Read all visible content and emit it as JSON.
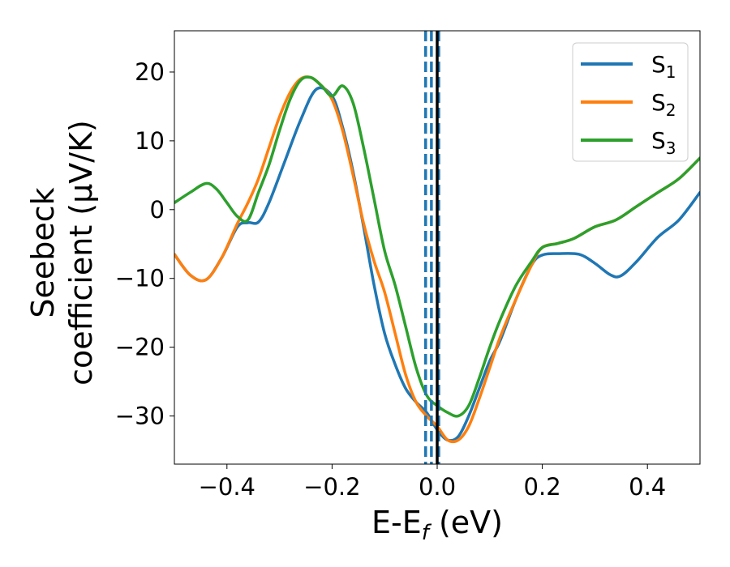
{
  "chart_data": {
    "type": "line",
    "title": "",
    "xlabel": "E-E",
    "xlabel_sub": "f",
    "xlabel_unit": " (eV)",
    "ylabel_line1": "Seebeck",
    "ylabel_line2": "coefficient  (μV/K)",
    "xlim": [
      -0.5,
      0.5
    ],
    "ylim": [
      -37,
      26
    ],
    "xticks": [
      -0.4,
      -0.2,
      0.0,
      0.2,
      0.4
    ],
    "xtick_labels": [
      "−0.4",
      "−0.2",
      "0.0",
      "0.2",
      "0.4"
    ],
    "yticks": [
      -30,
      -20,
      -10,
      0,
      10,
      20
    ],
    "ytick_labels": [
      "−30",
      "−20",
      "−10",
      "0",
      "10",
      "20"
    ],
    "legend_position": "top-right",
    "series": [
      {
        "name": "S",
        "sub": "1",
        "color": "#1f77b4",
        "x": [
          -0.5,
          -0.47,
          -0.44,
          -0.41,
          -0.38,
          -0.36,
          -0.34,
          -0.32,
          -0.29,
          -0.26,
          -0.23,
          -0.2,
          -0.18,
          -0.16,
          -0.14,
          -0.12,
          -0.1,
          -0.08,
          -0.06,
          -0.04,
          -0.02,
          0.0,
          0.02,
          0.04,
          0.06,
          0.08,
          0.1,
          0.12,
          0.15,
          0.18,
          0.2,
          0.23,
          0.27,
          0.3,
          0.33,
          0.35,
          0.38,
          0.42,
          0.46,
          0.5
        ],
        "y": [
          -6.5,
          -9.5,
          -10.2,
          -7.0,
          -2.5,
          -1.9,
          -1.8,
          1.0,
          7.0,
          13.0,
          17.5,
          16.5,
          12.0,
          5.5,
          -2.5,
          -11.0,
          -18.0,
          -22.5,
          -26.0,
          -28.0,
          -29.5,
          -32.0,
          -33.5,
          -33.0,
          -30.0,
          -26.0,
          -22.0,
          -19.0,
          -13.0,
          -8.0,
          -6.6,
          -6.4,
          -6.5,
          -7.8,
          -9.5,
          -9.6,
          -7.5,
          -4.0,
          -1.5,
          2.5
        ]
      },
      {
        "name": "S",
        "sub": "2",
        "color": "#ff7f0e",
        "x": [
          -0.5,
          -0.47,
          -0.44,
          -0.41,
          -0.38,
          -0.36,
          -0.34,
          -0.32,
          -0.3,
          -0.28,
          -0.26,
          -0.24,
          -0.22,
          -0.2,
          -0.18,
          -0.16,
          -0.14,
          -0.12,
          -0.1,
          -0.08,
          -0.06,
          -0.04,
          -0.02,
          0.0,
          0.02,
          0.04,
          0.06,
          0.08,
          0.1,
          0.12,
          0.15,
          0.18,
          0.2,
          0.23,
          0.26,
          0.3,
          0.34,
          0.38,
          0.42,
          0.46,
          0.5
        ],
        "y": [
          -6.5,
          -9.5,
          -10.2,
          -7.0,
          -2.0,
          1.0,
          4.5,
          9.0,
          13.5,
          17.0,
          19.0,
          19.2,
          18.0,
          16.0,
          11.5,
          5.0,
          -2.0,
          -7.5,
          -12.0,
          -18.0,
          -24.0,
          -28.0,
          -30.0,
          -31.5,
          -33.5,
          -33.5,
          -31.5,
          -27.5,
          -23.0,
          -18.5,
          -13.0,
          -8.0,
          -5.5,
          -4.9,
          -4.2,
          -2.5,
          -1.5,
          0.5,
          2.5,
          4.5,
          7.5
        ]
      },
      {
        "name": "S",
        "sub": "3",
        "color": "#2ca02c",
        "x": [
          -0.5,
          -0.47,
          -0.44,
          -0.42,
          -0.4,
          -0.38,
          -0.36,
          -0.34,
          -0.32,
          -0.3,
          -0.28,
          -0.26,
          -0.24,
          -0.22,
          -0.2,
          -0.18,
          -0.16,
          -0.14,
          -0.12,
          -0.1,
          -0.08,
          -0.06,
          -0.04,
          -0.02,
          0.0,
          0.02,
          0.04,
          0.06,
          0.08,
          0.1,
          0.12,
          0.15,
          0.18,
          0.2,
          0.23,
          0.26,
          0.3,
          0.34,
          0.38,
          0.42,
          0.46,
          0.5
        ],
        "y": [
          1.0,
          2.5,
          3.8,
          3.0,
          1.0,
          -1.0,
          -1.5,
          2.5,
          6.5,
          11.5,
          16.0,
          18.8,
          19.2,
          18.0,
          16.5,
          18.0,
          15.5,
          9.0,
          1.5,
          -6.0,
          -11.0,
          -17.0,
          -23.0,
          -27.0,
          -28.5,
          -29.5,
          -30.0,
          -28.5,
          -24.5,
          -20.0,
          -16.0,
          -11.0,
          -7.5,
          -5.5,
          -4.9,
          -4.2,
          -2.5,
          -1.5,
          0.5,
          2.5,
          4.5,
          7.5
        ]
      }
    ],
    "vlines": [
      {
        "x": -0.022,
        "color": "#1f77b4",
        "style": "dashed"
      },
      {
        "x": -0.011,
        "color": "#1f77b4",
        "style": "dashed"
      },
      {
        "x": 0.003,
        "color": "#1f77b4",
        "style": "dashed"
      },
      {
        "x": 0.0,
        "color": "#000000",
        "style": "solid"
      }
    ]
  }
}
